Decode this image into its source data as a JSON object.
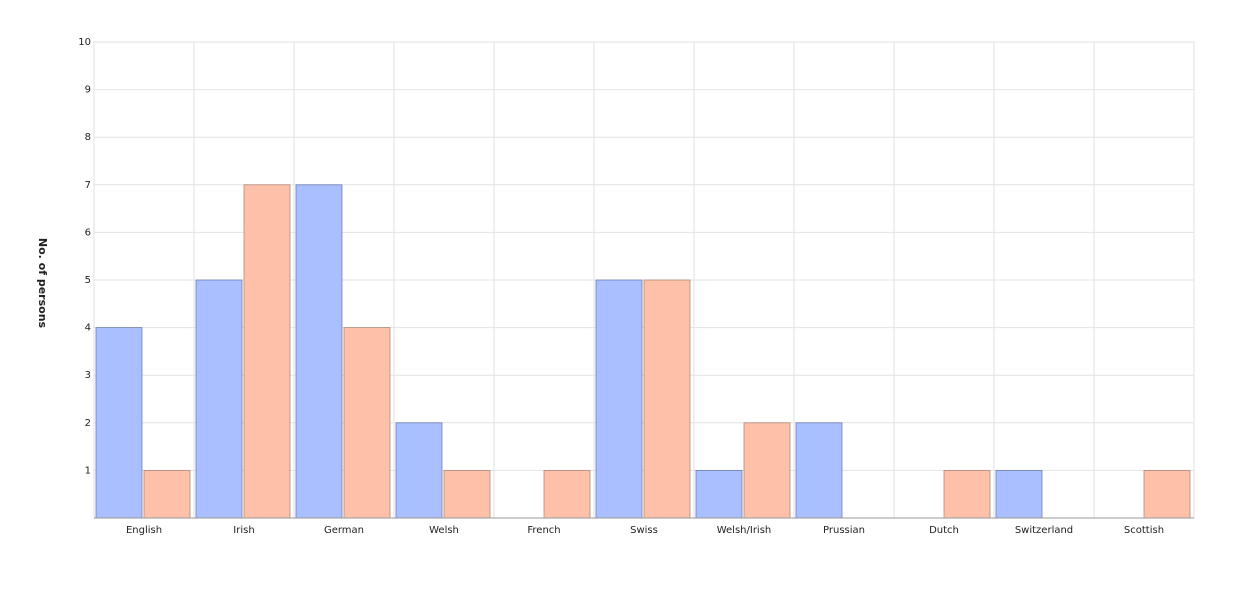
{
  "chart_data": {
    "type": "bar",
    "y_label": "No. of persons",
    "categories": [
      "English",
      "Irish",
      "German",
      "Welsh",
      "French",
      "Swiss",
      "Welsh/Irish",
      "Prussian",
      "Dutch",
      "Switzerland",
      "Scottish"
    ],
    "series": [
      {
        "color": "#aabfff",
        "values": [
          4,
          5,
          7,
          2,
          null,
          5,
          1,
          2,
          null,
          1,
          null
        ]
      },
      {
        "color": "#ffc0aa",
        "values": [
          1,
          7,
          4,
          1,
          1,
          5,
          2,
          null,
          1,
          null,
          1
        ]
      }
    ],
    "ylim": [
      0,
      10
    ],
    "yticks": [
      1,
      2,
      3,
      4,
      5,
      6,
      7,
      8,
      9,
      10
    ],
    "grid": true
  }
}
